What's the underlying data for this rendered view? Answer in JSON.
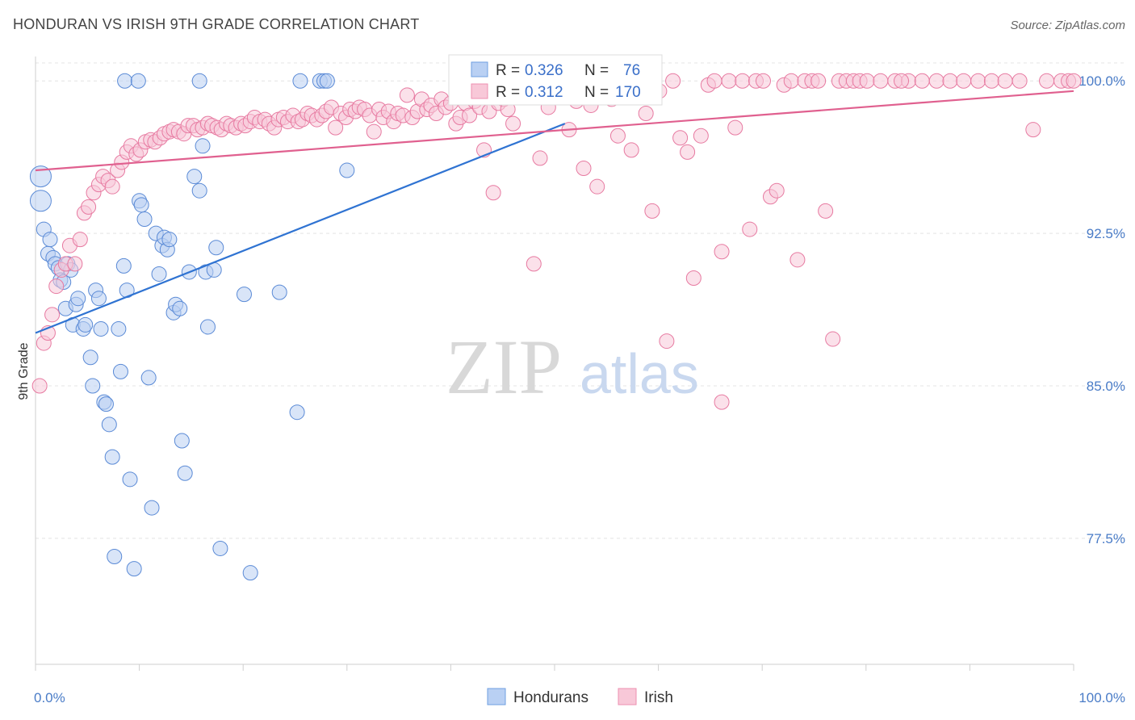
{
  "header": {
    "title": "HONDURAN VS IRISH 9TH GRADE CORRELATION CHART",
    "source": "Source: ZipAtlas.com"
  },
  "watermark": {
    "zip": "ZIP",
    "atlas": "atlas"
  },
  "legend_box": {
    "rows": [
      {
        "r_label": "R =",
        "r_value": "0.326",
        "n_label": "N =",
        "n_value": "76",
        "color": "#6f9fe0"
      },
      {
        "r_label": "R =",
        "r_value": "0.312",
        "n_label": "N =",
        "n_value": "170",
        "color": "#ee8fb0"
      }
    ]
  },
  "chart_data": {
    "type": "scatter",
    "title": "HONDURAN VS IRISH 9TH GRADE CORRELATION CHART",
    "xlabel": "",
    "ylabel": "9th Grade",
    "xlim": [
      0,
      100
    ],
    "ylim": [
      71.3,
      101.2
    ],
    "x_tick_labels": [
      {
        "value": 0,
        "label": "0.0%"
      },
      {
        "value": 100,
        "label": "100.0%"
      }
    ],
    "y_tick_labels": [
      {
        "value": 100,
        "label": "100.0%"
      },
      {
        "value": 92.5,
        "label": "92.5%"
      },
      {
        "value": 85,
        "label": "85.0%"
      },
      {
        "value": 77.5,
        "label": "77.5%"
      }
    ],
    "grid": true,
    "legend_position": "bottom-center",
    "series": [
      {
        "name": "Hondurans",
        "color": "#6f9fe0",
        "stroke": "#5a8ad6",
        "trend": {
          "x": [
            0,
            51
          ],
          "y": [
            87.6,
            97.9
          ]
        },
        "points": [
          [
            0.5,
            95.3
          ],
          [
            0.5,
            94.1
          ],
          [
            0.8,
            92.7
          ],
          [
            1.2,
            91.5
          ],
          [
            1.4,
            92.2
          ],
          [
            1.7,
            91.3
          ],
          [
            1.9,
            91.0
          ],
          [
            2.2,
            90.8
          ],
          [
            2.4,
            90.2
          ],
          [
            2.7,
            90.1
          ],
          [
            2.9,
            88.8
          ],
          [
            3.1,
            91.0
          ],
          [
            3.4,
            90.7
          ],
          [
            3.6,
            88.0
          ],
          [
            3.9,
            89.0
          ],
          [
            4.1,
            89.3
          ],
          [
            4.6,
            87.8
          ],
          [
            4.8,
            88.0
          ],
          [
            5.3,
            86.4
          ],
          [
            5.5,
            85.0
          ],
          [
            5.8,
            89.7
          ],
          [
            6.1,
            89.3
          ],
          [
            6.3,
            87.8
          ],
          [
            6.6,
            84.2
          ],
          [
            6.8,
            84.1
          ],
          [
            7.1,
            83.1
          ],
          [
            7.4,
            81.5
          ],
          [
            7.6,
            76.6
          ],
          [
            8.0,
            87.8
          ],
          [
            8.2,
            85.7
          ],
          [
            8.5,
            90.9
          ],
          [
            8.8,
            89.7
          ],
          [
            9.1,
            80.4
          ],
          [
            9.5,
            76.0
          ],
          [
            10.0,
            94.1
          ],
          [
            10.2,
            93.9
          ],
          [
            10.5,
            93.2
          ],
          [
            10.9,
            85.4
          ],
          [
            11.2,
            79.0
          ],
          [
            11.6,
            92.5
          ],
          [
            11.9,
            90.5
          ],
          [
            12.2,
            91.9
          ],
          [
            12.4,
            92.3
          ],
          [
            12.7,
            91.7
          ],
          [
            12.9,
            92.2
          ],
          [
            13.3,
            88.6
          ],
          [
            13.5,
            89.0
          ],
          [
            13.9,
            88.8
          ],
          [
            14.1,
            82.3
          ],
          [
            14.4,
            80.7
          ],
          [
            14.8,
            90.6
          ],
          [
            15.3,
            95.3
          ],
          [
            15.8,
            94.6
          ],
          [
            16.1,
            96.8
          ],
          [
            16.4,
            90.6
          ],
          [
            16.6,
            87.9
          ],
          [
            17.2,
            90.7
          ],
          [
            17.4,
            91.8
          ],
          [
            17.8,
            77.0
          ],
          [
            20.1,
            89.5
          ],
          [
            20.7,
            75.8
          ],
          [
            23.5,
            89.6
          ],
          [
            25.2,
            83.7
          ],
          [
            30.0,
            95.6
          ],
          [
            8.6,
            100.0
          ],
          [
            9.9,
            100.0
          ],
          [
            15.8,
            100.0
          ],
          [
            25.5,
            100.0
          ],
          [
            27.4,
            100.0
          ],
          [
            27.8,
            100.0
          ],
          [
            28.1,
            100.0
          ],
          [
            43.0,
            100.0
          ],
          [
            45.4,
            100.0
          ],
          [
            47.5,
            100.0
          ],
          [
            49.9,
            99.8
          ],
          [
            51.2,
            100.0
          ]
        ]
      },
      {
        "name": "Irish",
        "color": "#ee8fb0",
        "stroke": "#e77aa1",
        "trend": {
          "x": [
            0,
            100
          ],
          "y": [
            95.6,
            99.5
          ]
        },
        "points": [
          [
            0.4,
            85.0
          ],
          [
            0.8,
            87.1
          ],
          [
            1.2,
            87.6
          ],
          [
            1.6,
            88.5
          ],
          [
            2.0,
            89.9
          ],
          [
            2.5,
            90.7
          ],
          [
            2.9,
            91.0
          ],
          [
            3.3,
            91.9
          ],
          [
            3.8,
            91.0
          ],
          [
            4.3,
            92.2
          ],
          [
            4.7,
            93.5
          ],
          [
            5.1,
            93.8
          ],
          [
            5.6,
            94.5
          ],
          [
            6.1,
            94.9
          ],
          [
            6.5,
            95.3
          ],
          [
            7.0,
            95.1
          ],
          [
            7.4,
            94.8
          ],
          [
            7.9,
            95.6
          ],
          [
            8.3,
            96.0
          ],
          [
            8.8,
            96.5
          ],
          [
            9.2,
            96.8
          ],
          [
            9.7,
            96.4
          ],
          [
            10.1,
            96.6
          ],
          [
            10.6,
            97.0
          ],
          [
            11.1,
            97.1
          ],
          [
            11.5,
            97.0
          ],
          [
            12.0,
            97.2
          ],
          [
            12.4,
            97.4
          ],
          [
            12.9,
            97.5
          ],
          [
            13.3,
            97.6
          ],
          [
            13.8,
            97.5
          ],
          [
            14.3,
            97.4
          ],
          [
            14.7,
            97.8
          ],
          [
            15.2,
            97.8
          ],
          [
            15.6,
            97.6
          ],
          [
            16.1,
            97.7
          ],
          [
            16.6,
            97.9
          ],
          [
            17.0,
            97.8
          ],
          [
            17.5,
            97.7
          ],
          [
            17.9,
            97.6
          ],
          [
            18.4,
            97.9
          ],
          [
            18.8,
            97.8
          ],
          [
            19.3,
            97.7
          ],
          [
            19.8,
            97.9
          ],
          [
            20.2,
            97.8
          ],
          [
            20.7,
            98.0
          ],
          [
            21.1,
            98.2
          ],
          [
            21.6,
            98.0
          ],
          [
            22.1,
            98.1
          ],
          [
            22.5,
            97.9
          ],
          [
            23.0,
            97.7
          ],
          [
            23.4,
            98.1
          ],
          [
            23.9,
            98.2
          ],
          [
            24.3,
            98.0
          ],
          [
            24.8,
            98.3
          ],
          [
            25.3,
            98.0
          ],
          [
            25.7,
            98.1
          ],
          [
            26.2,
            98.4
          ],
          [
            26.6,
            98.3
          ],
          [
            27.1,
            98.1
          ],
          [
            27.6,
            98.3
          ],
          [
            28.0,
            98.5
          ],
          [
            28.5,
            98.7
          ],
          [
            28.9,
            97.7
          ],
          [
            29.4,
            98.4
          ],
          [
            29.9,
            98.2
          ],
          [
            30.3,
            98.6
          ],
          [
            30.8,
            98.5
          ],
          [
            31.2,
            98.7
          ],
          [
            31.7,
            98.6
          ],
          [
            32.2,
            98.3
          ],
          [
            32.6,
            97.5
          ],
          [
            33.1,
            98.6
          ],
          [
            33.5,
            98.2
          ],
          [
            34.0,
            98.5
          ],
          [
            34.5,
            98.0
          ],
          [
            34.9,
            98.4
          ],
          [
            35.4,
            98.3
          ],
          [
            35.8,
            99.3
          ],
          [
            36.3,
            98.2
          ],
          [
            36.8,
            98.5
          ],
          [
            37.2,
            99.1
          ],
          [
            37.7,
            98.6
          ],
          [
            38.1,
            98.8
          ],
          [
            38.6,
            98.4
          ],
          [
            39.1,
            99.1
          ],
          [
            39.5,
            98.7
          ],
          [
            40.0,
            98.9
          ],
          [
            40.5,
            97.9
          ],
          [
            40.9,
            98.2
          ],
          [
            41.4,
            98.9
          ],
          [
            41.8,
            98.3
          ],
          [
            42.3,
            99.0
          ],
          [
            42.8,
            98.7
          ],
          [
            43.2,
            96.6
          ],
          [
            43.7,
            98.5
          ],
          [
            44.1,
            94.5
          ],
          [
            44.6,
            98.9
          ],
          [
            45.1,
            99.1
          ],
          [
            45.5,
            98.6
          ],
          [
            46.0,
            97.9
          ],
          [
            46.4,
            99.2
          ],
          [
            47.5,
            99.2
          ],
          [
            48.0,
            91.0
          ],
          [
            48.6,
            96.2
          ],
          [
            49.4,
            98.7
          ],
          [
            50.1,
            99.6
          ],
          [
            50.8,
            99.3
          ],
          [
            51.4,
            97.6
          ],
          [
            52.1,
            99.0
          ],
          [
            52.8,
            95.7
          ],
          [
            53.5,
            98.8
          ],
          [
            54.1,
            94.8
          ],
          [
            54.8,
            99.3
          ],
          [
            55.5,
            99.1
          ],
          [
            56.1,
            97.3
          ],
          [
            56.8,
            99.5
          ],
          [
            57.4,
            96.6
          ],
          [
            58.1,
            99.7
          ],
          [
            58.8,
            98.4
          ],
          [
            59.4,
            93.6
          ],
          [
            60.1,
            99.5
          ],
          [
            60.8,
            87.2
          ],
          [
            61.4,
            100.0
          ],
          [
            62.1,
            97.2
          ],
          [
            62.8,
            96.5
          ],
          [
            63.4,
            90.3
          ],
          [
            64.1,
            97.3
          ],
          [
            64.8,
            99.8
          ],
          [
            65.4,
            100.0
          ],
          [
            66.1,
            91.6
          ],
          [
            66.8,
            100.0
          ],
          [
            67.4,
            97.7
          ],
          [
            68.1,
            100.0
          ],
          [
            68.8,
            92.7
          ],
          [
            69.4,
            100.0
          ],
          [
            70.1,
            100.0
          ],
          [
            70.8,
            94.3
          ],
          [
            71.4,
            94.6
          ],
          [
            72.1,
            99.8
          ],
          [
            72.8,
            100.0
          ],
          [
            73.4,
            91.2
          ],
          [
            74.1,
            100.0
          ],
          [
            74.8,
            100.0
          ],
          [
            75.4,
            100.0
          ],
          [
            76.1,
            93.6
          ],
          [
            76.8,
            87.3
          ],
          [
            77.4,
            100.0
          ],
          [
            78.1,
            100.0
          ],
          [
            78.8,
            100.0
          ],
          [
            79.4,
            100.0
          ],
          [
            80.1,
            100.0
          ],
          [
            81.4,
            100.0
          ],
          [
            82.8,
            100.0
          ],
          [
            84.1,
            100.0
          ],
          [
            85.4,
            100.0
          ],
          [
            86.8,
            100.0
          ],
          [
            88.1,
            100.0
          ],
          [
            89.4,
            100.0
          ],
          [
            90.8,
            100.0
          ],
          [
            92.1,
            100.0
          ],
          [
            93.4,
            100.0
          ],
          [
            94.8,
            100.0
          ],
          [
            96.1,
            97.6
          ],
          [
            97.4,
            100.0
          ],
          [
            98.8,
            100.0
          ],
          [
            99.5,
            100.0
          ],
          [
            66.1,
            84.2
          ],
          [
            83.4,
            100.0
          ],
          [
            100.0,
            100.0
          ]
        ]
      }
    ]
  }
}
